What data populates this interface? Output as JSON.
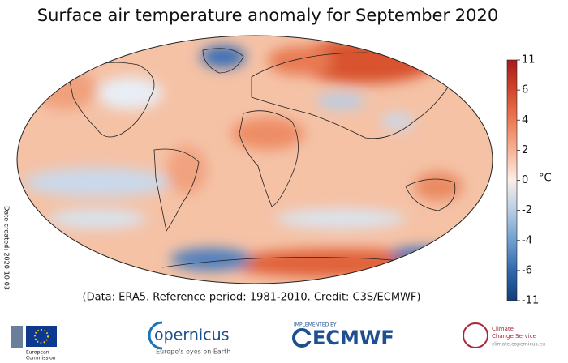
{
  "title": "Surface air temperature anomaly for September 2020",
  "colorbar": {
    "ticks": [
      11,
      6,
      4,
      2,
      0,
      -2,
      -4,
      -6,
      -11
    ],
    "unit": "°C"
  },
  "credit": "(Data: ERA5.  Reference period: 1981-2010.  Credit: C3S/ECMWF)",
  "date_created": "Date created: 2020-10-03",
  "logos": {
    "european_commission": [
      "European",
      "Commission"
    ],
    "copernicus": {
      "name": "opernicus",
      "tagline": "Europe's eyes on Earth"
    },
    "ecmwf": {
      "caption": "IMPLEMENTED BY",
      "name": "ECMWF"
    },
    "c3s": [
      "Climate",
      "Change Service",
      "climate.copernicus.eu"
    ]
  }
}
